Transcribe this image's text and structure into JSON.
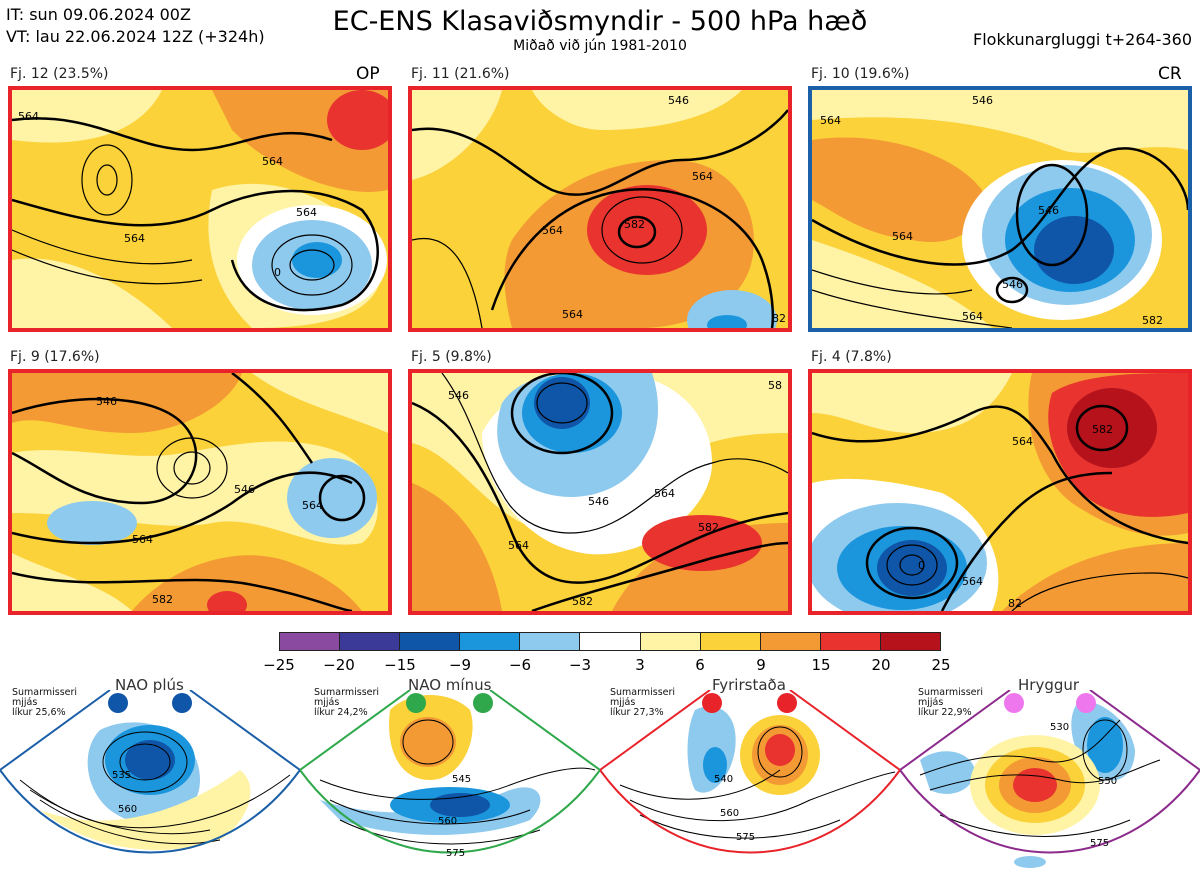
{
  "header": {
    "init_time": "IT: sun 09.06.2024 00Z",
    "valid_time": "VT: lau 22.06.2024 12Z  (+324h)",
    "title": "EC-ENS Klasaviðsmyndir - 500 hPa hæð",
    "subtitle": "Miðað við jún 1981-2010",
    "window": "Flokkunargluggi t+264-360"
  },
  "panels": [
    {
      "label": "Fj. 12 (23.5%)",
      "tag": "OP",
      "frame_color": "#e8232a"
    },
    {
      "label": "Fj. 11 (21.6%)",
      "tag": "",
      "frame_color": "#e8232a"
    },
    {
      "label": "Fj. 10 (19.6%)",
      "tag": "CR",
      "frame_color": "#1a5fa8"
    },
    {
      "label": "Fj. 9 (17.6%)",
      "tag": "",
      "frame_color": "#e8232a"
    },
    {
      "label": "Fj. 5 (9.8%)",
      "tag": "",
      "frame_color": "#e8232a"
    },
    {
      "label": "Fj. 4 (7.8%)",
      "tag": "",
      "frame_color": "#e8232a"
    }
  ],
  "colorbar": {
    "colors": [
      "#8a4aa0",
      "#3b3a98",
      "#0f55a8",
      "#1b96dc",
      "#8ec9ee",
      "#ffffff",
      "#fff3a6",
      "#fbd23a",
      "#f39a35",
      "#e8332e",
      "#b5121b"
    ],
    "ticks": [
      "−25",
      "−20",
      "−15",
      "−9",
      "−6",
      "−3",
      "3",
      "6",
      "9",
      "15",
      "20",
      "25"
    ]
  },
  "regimes": [
    {
      "name": "NAO plús",
      "season": "Sumarmisseri",
      "freq_label": "mjjás",
      "prob": "líkur 25,6%",
      "color": "#1a5fa8",
      "dot_color": "#0f55a8",
      "contours": [
        "535",
        "560"
      ]
    },
    {
      "name": "NAO mínus",
      "season": "Sumarmisseri",
      "freq_label": "mjjás",
      "prob": "líkur 24,2%",
      "color": "#2ea84a",
      "dot_color": "#2ea84a",
      "contours": [
        "545",
        "560",
        "575"
      ]
    },
    {
      "name": "Fyrirstaða",
      "season": "Sumarmisseri",
      "freq_label": "mjjás",
      "prob": "líkur 27,3%",
      "color": "#e8232a",
      "dot_color": "#e8232a",
      "contours": [
        "540",
        "560",
        "575"
      ]
    },
    {
      "name": "Hryggur",
      "season": "Sumarmisseri",
      "freq_label": "mjjás",
      "prob": "líkur 22,9%",
      "color": "#8c2a8c",
      "dot_color": "#ee77ee",
      "contours": [
        "530",
        "550",
        "575"
      ]
    }
  ],
  "panel_contours": [
    [
      "564",
      "564",
      "564",
      "564",
      "0"
    ],
    [
      "546",
      "564",
      "582",
      "564",
      "564",
      "82"
    ],
    [
      "564",
      "546",
      "564",
      "546",
      "546",
      "564",
      "582"
    ],
    [
      "546",
      "546",
      "564",
      "564",
      "582"
    ],
    [
      "546",
      "564",
      "546",
      "564",
      "582",
      "582",
      "58"
    ],
    [
      "0",
      "582",
      "564",
      "564",
      "82"
    ]
  ]
}
